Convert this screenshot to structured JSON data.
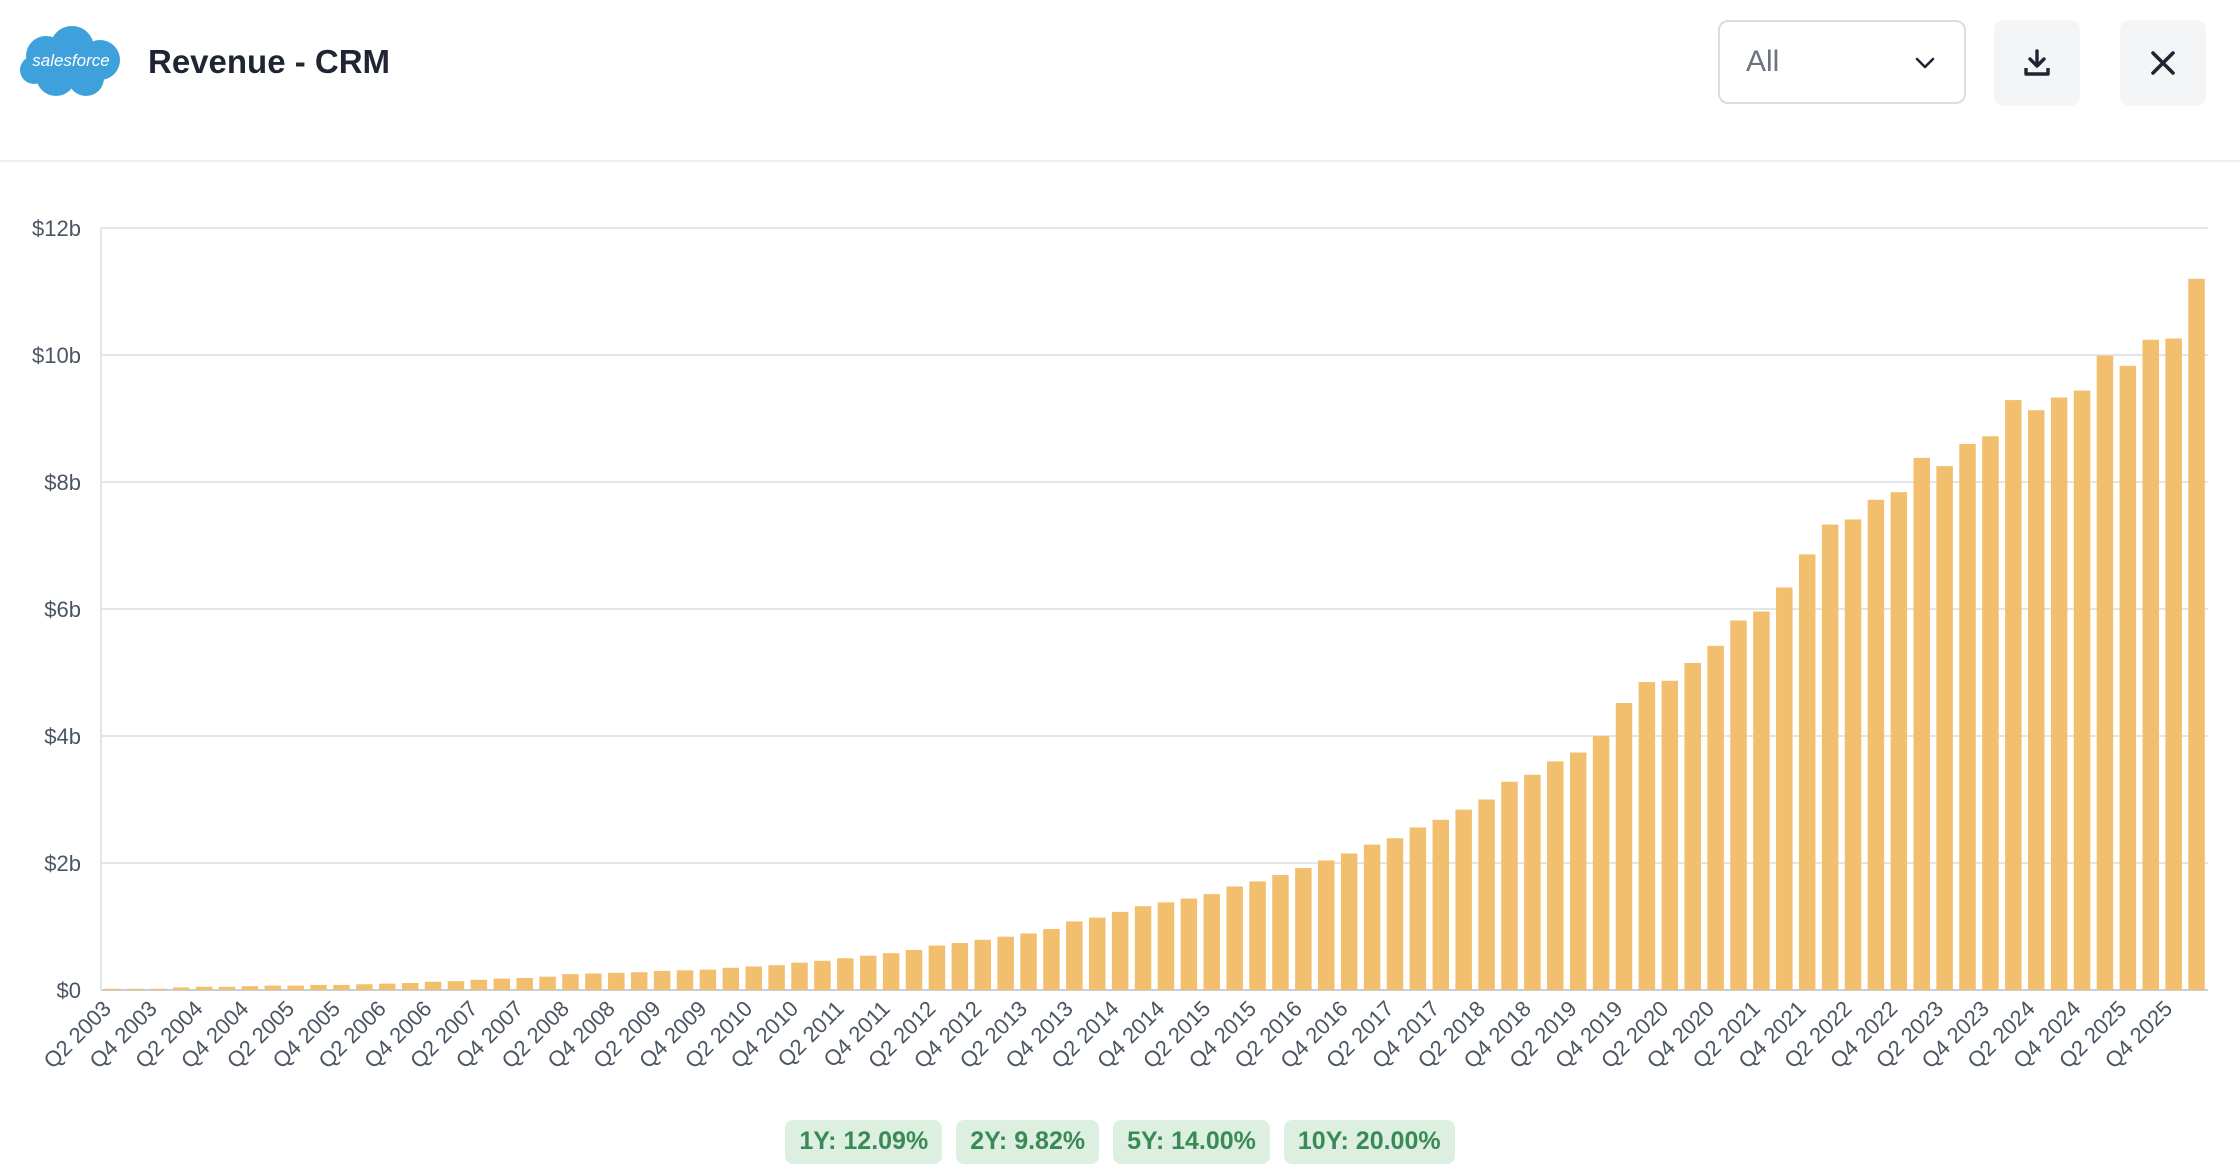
{
  "header": {
    "logo_text": "salesforce",
    "title": "Revenue - CRM",
    "filter": {
      "selected": "All"
    },
    "download_icon": "download-icon",
    "close_icon": "close-icon"
  },
  "colors": {
    "bar": "#f2bf6e",
    "logo": "#3ea1db",
    "grid": "#e2e5ea",
    "badge_bg": "#dcefe1",
    "badge_text": "#3a8a55"
  },
  "badges": [
    {
      "text": "1Y: 12.09%"
    },
    {
      "text": "2Y: 9.82%"
    },
    {
      "text": "5Y: 14.00%"
    },
    {
      "text": "10Y: 20.00%"
    }
  ],
  "chart_data": {
    "type": "bar",
    "ylim": [
      0,
      12
    ],
    "y_unit": "billions USD",
    "yticks": [
      {
        "value": 0,
        "label": "$0"
      },
      {
        "value": 2,
        "label": "$2b"
      },
      {
        "value": 4,
        "label": "$4b"
      },
      {
        "value": 6,
        "label": "$6b"
      },
      {
        "value": 8,
        "label": "$8b"
      },
      {
        "value": 10,
        "label": "$10b"
      },
      {
        "value": 12,
        "label": "$12b"
      }
    ],
    "grid": true,
    "categories": [
      "Q2 2003",
      "Q3 2003",
      "Q4 2003",
      "Q1 2004",
      "Q2 2004",
      "Q3 2004",
      "Q4 2004",
      "Q1 2005",
      "Q2 2005",
      "Q3 2005",
      "Q4 2005",
      "Q1 2006",
      "Q2 2006",
      "Q3 2006",
      "Q4 2006",
      "Q1 2007",
      "Q2 2007",
      "Q3 2007",
      "Q4 2007",
      "Q1 2008",
      "Q2 2008",
      "Q3 2008",
      "Q4 2008",
      "Q1 2009",
      "Q2 2009",
      "Q3 2009",
      "Q4 2009",
      "Q1 2010",
      "Q2 2010",
      "Q3 2010",
      "Q4 2010",
      "Q1 2011",
      "Q2 2011",
      "Q3 2011",
      "Q4 2011",
      "Q1 2012",
      "Q2 2012",
      "Q3 2012",
      "Q4 2012",
      "Q1 2013",
      "Q2 2013",
      "Q3 2013",
      "Q4 2013",
      "Q1 2014",
      "Q2 2014",
      "Q3 2014",
      "Q4 2014",
      "Q1 2015",
      "Q2 2015",
      "Q3 2015",
      "Q4 2015",
      "Q1 2016",
      "Q2 2016",
      "Q3 2016",
      "Q4 2016",
      "Q1 2017",
      "Q2 2017",
      "Q3 2017",
      "Q4 2017",
      "Q1 2018",
      "Q2 2018",
      "Q3 2018",
      "Q4 2018",
      "Q1 2019",
      "Q2 2019",
      "Q3 2019",
      "Q4 2019",
      "Q1 2020",
      "Q2 2020",
      "Q3 2020",
      "Q4 2020",
      "Q1 2021",
      "Q2 2021",
      "Q3 2021",
      "Q4 2021",
      "Q1 2022",
      "Q2 2022",
      "Q3 2022",
      "Q4 2022",
      "Q1 2023",
      "Q2 2023",
      "Q3 2023",
      "Q4 2023",
      "Q1 2024",
      "Q2 2024",
      "Q3 2024",
      "Q4 2024",
      "Q1 2025",
      "Q2 2025",
      "Q3 2025",
      "Q4 2025",
      "Q1 2026"
    ],
    "xtick_labels": [
      "Q2 2003",
      "Q4 2003",
      "Q2 2004",
      "Q4 2004",
      "Q2 2005",
      "Q4 2005",
      "Q2 2006",
      "Q4 2006",
      "Q2 2007",
      "Q4 2007",
      "Q2 2008",
      "Q4 2008",
      "Q2 2009",
      "Q4 2009",
      "Q2 2010",
      "Q4 2010",
      "Q2 2011",
      "Q4 2011",
      "Q2 2012",
      "Q4 2012",
      "Q2 2013",
      "Q4 2013",
      "Q2 2014",
      "Q4 2014",
      "Q2 2015",
      "Q4 2015",
      "Q2 2016",
      "Q4 2016",
      "Q2 2017",
      "Q4 2017",
      "Q2 2018",
      "Q4 2018",
      "Q2 2019",
      "Q4 2019",
      "Q2 2020",
      "Q4 2020",
      "Q2 2021",
      "Q4 2021",
      "Q2 2022",
      "Q4 2022",
      "Q2 2023",
      "Q4 2023",
      "Q2 2024",
      "Q4 2024",
      "Q2 2025",
      "Q4 2025"
    ],
    "series": [
      {
        "values": [
          0.02,
          0.02,
          0.02,
          0.04,
          0.05,
          0.05,
          0.06,
          0.07,
          0.07,
          0.08,
          0.08,
          0.09,
          0.1,
          0.11,
          0.13,
          0.14,
          0.16,
          0.18,
          0.19,
          0.21,
          0.25,
          0.26,
          0.27,
          0.28,
          0.3,
          0.31,
          0.32,
          0.35,
          0.37,
          0.39,
          0.43,
          0.46,
          0.5,
          0.54,
          0.58,
          0.63,
          0.7,
          0.74,
          0.79,
          0.84,
          0.89,
          0.96,
          1.08,
          1.14,
          1.23,
          1.32,
          1.38,
          1.44,
          1.51,
          1.63,
          1.71,
          1.81,
          1.92,
          2.04,
          2.15,
          2.29,
          2.39,
          2.56,
          2.68,
          2.84,
          3.0,
          3.28,
          3.39,
          3.6,
          3.74,
          4.0,
          4.52,
          4.85,
          4.87,
          5.15,
          5.42,
          5.82,
          5.96,
          6.34,
          6.86,
          7.33,
          7.41,
          7.72,
          7.84,
          8.38,
          8.25,
          8.6,
          8.72,
          9.29,
          9.13,
          9.33,
          9.44,
          9.99,
          9.83,
          10.24,
          10.26,
          11.2
        ]
      }
    ]
  }
}
